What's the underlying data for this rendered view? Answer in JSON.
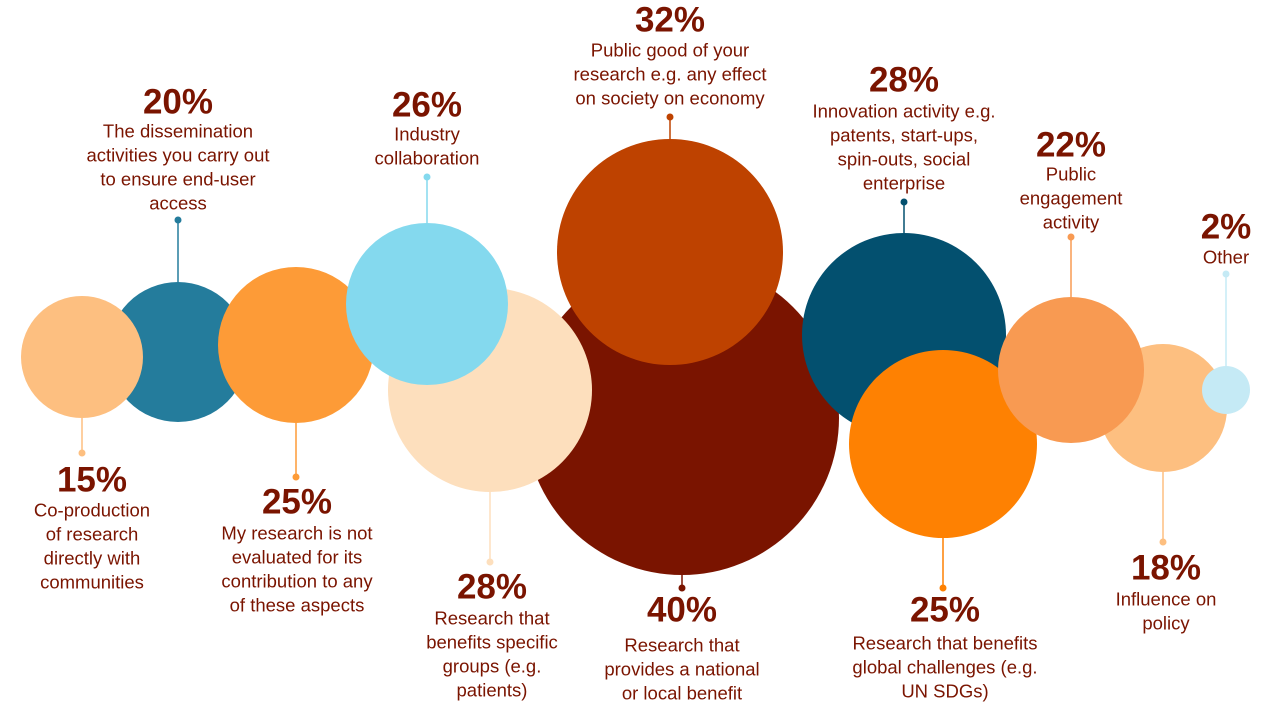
{
  "chart_data": {
    "type": "bubble",
    "title": "",
    "items": [
      {
        "id": "co-production",
        "value": 15,
        "percent": "15%",
        "lines": [
          "Co-production",
          "of research",
          "directly with",
          "communities"
        ],
        "color": "#FDBF80"
      },
      {
        "id": "dissemination",
        "value": 20,
        "percent": "20%",
        "lines": [
          "The dissemination",
          "activities you carry out",
          "to ensure end-user",
          "access"
        ],
        "color": "#247C9C"
      },
      {
        "id": "not-evaluated",
        "value": 25,
        "percent": "25%",
        "lines": [
          "My research is not",
          "evaluated for its",
          "contribution to any",
          "of these aspects"
        ],
        "color": "#FD9B37"
      },
      {
        "id": "industry",
        "value": 26,
        "percent": "26%",
        "lines": [
          "Industry",
          "collaboration"
        ],
        "color": "#84D9EE"
      },
      {
        "id": "specific-groups",
        "value": 28,
        "percent": "28%",
        "lines": [
          "Research that",
          "benefits specific",
          "groups (e.g.",
          "patients)"
        ],
        "color": "#FDDFBD"
      },
      {
        "id": "national-local",
        "value": 40,
        "percent": "40%",
        "lines": [
          "Research that",
          "provides a national",
          "or local benefit"
        ],
        "color": "#7A1400"
      },
      {
        "id": "public-good",
        "value": 32,
        "percent": "32%",
        "lines": [
          "Public good of your",
          "research e.g. any effect",
          "on society on economy"
        ],
        "color": "#BE4200"
      },
      {
        "id": "innovation",
        "value": 28,
        "percent": "28%",
        "lines": [
          "Innovation activity e.g.",
          "patents, start-ups,",
          "spin-outs, social",
          "enterprise"
        ],
        "color": "#03506F"
      },
      {
        "id": "global-challenges",
        "value": 25,
        "percent": "25%",
        "lines": [
          "Research that benefits",
          "global challenges (e.g.",
          "UN SDGs)"
        ],
        "color": "#FE8102"
      },
      {
        "id": "public-engagement",
        "value": 22,
        "percent": "22%",
        "lines": [
          "Public",
          "engagement",
          "activity"
        ],
        "color": "#F89A52"
      },
      {
        "id": "policy",
        "value": 18,
        "percent": "18%",
        "lines": [
          "Influence on",
          "policy"
        ],
        "color": "#FDBF80"
      },
      {
        "id": "other",
        "value": 2,
        "percent": "2%",
        "lines": [
          "Other"
        ],
        "color": "#C5EAF5"
      }
    ]
  }
}
